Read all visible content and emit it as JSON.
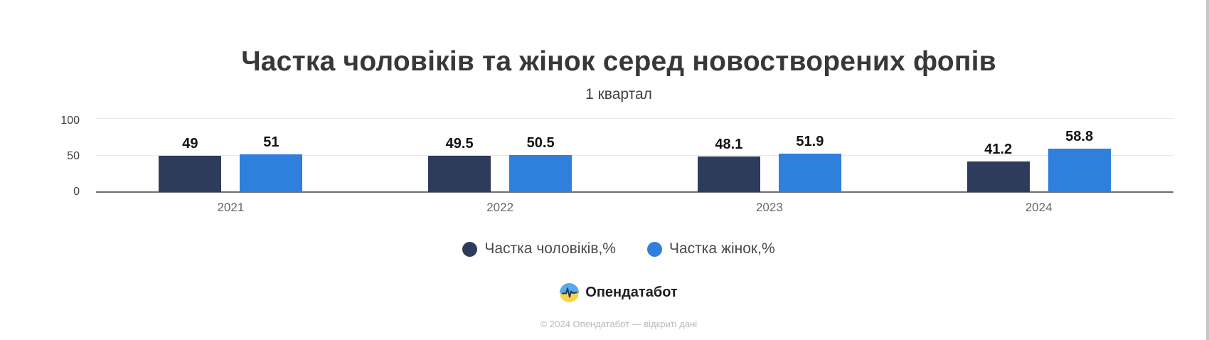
{
  "title": "Частка чоловіків та жінок серед новостворених фопів",
  "subtitle": "1 квартал",
  "chart_data": {
    "type": "bar",
    "title": "Частка чоловіків та жінок серед новостворених фопів",
    "subtitle": "1 квартал",
    "categories": [
      "2021",
      "2022",
      "2023",
      "2024"
    ],
    "series": [
      {
        "name": "Частка чоловіків,%",
        "color": "#2e3c5c",
        "values": [
          49,
          49.5,
          48.1,
          41.2
        ]
      },
      {
        "name": "Частка жінок,%",
        "color": "#2f80dd",
        "values": [
          51,
          50.5,
          51.9,
          58.8
        ]
      }
    ],
    "xlabel": "",
    "ylabel": "",
    "ylim": [
      0,
      100
    ],
    "yticks": [
      "0",
      "50",
      "100"
    ],
    "grid": true,
    "legend_position": "bottom",
    "value_labels": true
  },
  "footer": {
    "brand": "Опендатабот",
    "copyright": "© 2024 Опендатабот — відкриті дані"
  },
  "colors": {
    "men": "#2e3c5c",
    "women": "#2f80dd",
    "gridline": "#e9e9e9",
    "baseline": "#6e6e6e",
    "logo_blue": "#56aae8",
    "logo_yellow": "#f8d34a"
  }
}
